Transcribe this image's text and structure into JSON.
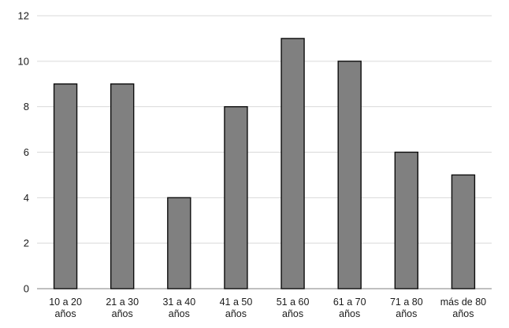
{
  "chart_data": {
    "type": "bar",
    "title": "",
    "xlabel": "",
    "ylabel": "",
    "categories": [
      [
        "10 a 20",
        "años"
      ],
      [
        "21 a 30",
        "años"
      ],
      [
        "31 a 40",
        "años"
      ],
      [
        "41 a 50",
        "años"
      ],
      [
        "51 a 60",
        "años"
      ],
      [
        "61 a 70",
        "años"
      ],
      [
        "71 a 80",
        "años"
      ],
      [
        "más de 80",
        "años"
      ]
    ],
    "values": [
      9,
      9,
      4,
      8,
      11,
      10,
      6,
      5
    ],
    "ylim": [
      0,
      12
    ],
    "yticks": [
      0,
      2,
      4,
      6,
      8,
      10,
      12
    ],
    "grid": true,
    "legend": "none",
    "colors": {
      "bar_fill": "#808080",
      "bar_stroke": "#0d0d0d",
      "grid": "#d9d9d9"
    }
  }
}
